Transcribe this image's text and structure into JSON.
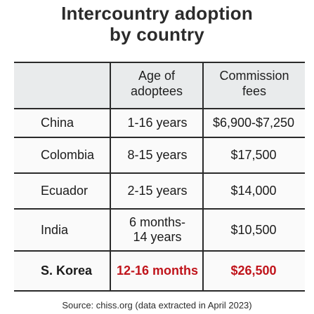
{
  "title_line1": "Intercountry adoption",
  "title_line2": "by country",
  "headers": {
    "age_line1": "Age of",
    "age_line2": "adoptees",
    "fee_line1": "Commission",
    "fee_line2": "fees"
  },
  "rows": [
    {
      "country": "China",
      "age": "1-16 years",
      "fee": "$6,900-$7,250"
    },
    {
      "country": "Colombia",
      "age": "8-15 years",
      "fee": "$17,500"
    },
    {
      "country": "Ecuador",
      "age": "2-15 years",
      "fee": "$14,000"
    },
    {
      "country": "India",
      "age_line1": "6 months-",
      "age_line2": "14 years",
      "fee": "$10,500"
    },
    {
      "country": "S. Korea",
      "age": "12-16 months",
      "fee": "$26,500"
    }
  ],
  "source": "Source: chiss.org (data extracted in April 2023)",
  "colors": {
    "highlight": "#c0141b",
    "header_background": "#e9ebec",
    "rule": "#2a2a2a"
  }
}
